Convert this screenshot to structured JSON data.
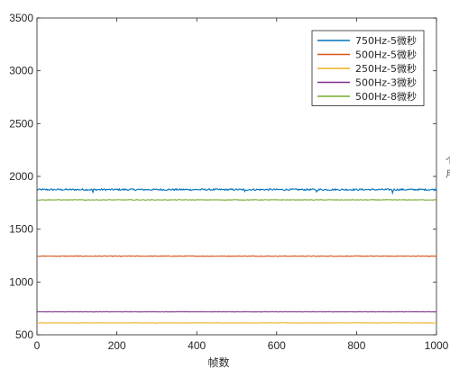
{
  "chart_data": {
    "type": "line",
    "title": "",
    "xlabel": "帧数",
    "ylabel": "",
    "xlim": [
      0,
      1000
    ],
    "ylim": [
      500,
      3500
    ],
    "xticks": [
      0,
      200,
      400,
      600,
      800,
      1000
    ],
    "yticks": [
      500,
      1000,
      1500,
      2000,
      2500,
      3000,
      3500
    ],
    "grid": false,
    "legend_position": "top-right",
    "series": [
      {
        "name": "750Hz-5微秒",
        "color": "#0072BD",
        "mean": 1875,
        "noise": 8,
        "dips": [
          [
            140,
            1850
          ],
          [
            520,
            1858
          ],
          [
            700,
            1853
          ],
          [
            890,
            1842
          ],
          [
            895,
            1835
          ]
        ]
      },
      {
        "name": "500Hz-5微秒",
        "color": "#D95319",
        "mean": 1245,
        "noise": 3,
        "dips": [
          [
            210,
            1240
          ],
          [
            700,
            1240
          ],
          [
            980,
            1240
          ]
        ]
      },
      {
        "name": "250Hz-5微秒",
        "color": "#EDB120",
        "mean": 612,
        "noise": 2,
        "dips": []
      },
      {
        "name": "500Hz-3微秒",
        "color": "#7E2F8E",
        "mean": 718,
        "noise": 2,
        "dips": []
      },
      {
        "name": "500Hz-8微秒",
        "color": "#77AC30",
        "mean": 1778,
        "noise": 3,
        "dips": [
          [
            120,
            1772
          ],
          [
            1000,
            1772
          ]
        ]
      }
    ],
    "side_label_fragment": "个 月"
  }
}
